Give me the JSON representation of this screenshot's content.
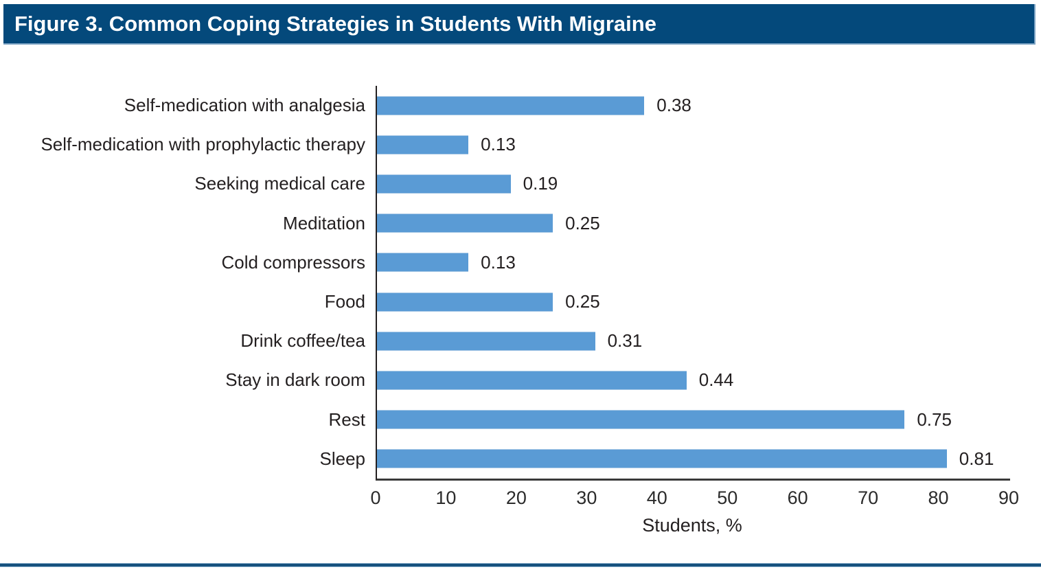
{
  "figure": {
    "title": "Figure 3. Common Coping Strategies in Students With Migraine",
    "title_bar_color": "#04497b",
    "title_text_color": "#ffffff"
  },
  "chart_data": {
    "type": "bar",
    "orientation": "horizontal",
    "title": "Figure 3. Common Coping Strategies in Students With Migraine",
    "categories": [
      "Self-medication with analgesia",
      "Self-medication with prophylactic therapy",
      "Seeking medical care",
      "Meditation",
      "Cold compressors",
      "Food",
      "Drink coffee/tea",
      "Stay in dark room",
      "Rest",
      "Sleep"
    ],
    "values": [
      0.38,
      0.13,
      0.19,
      0.25,
      0.13,
      0.25,
      0.31,
      0.44,
      0.75,
      0.81
    ],
    "value_labels": [
      "0.38",
      "0.13",
      "0.19",
      "0.25",
      "0.13",
      "0.25",
      "0.31",
      "0.44",
      "0.75",
      "0.81"
    ],
    "bar_lengths_as_percent_of_axis": [
      38,
      13,
      19,
      25,
      13,
      25,
      31,
      44,
      75,
      81
    ],
    "xlabel": "Students, %",
    "ylabel": "",
    "x_ticks": [
      "0",
      "10",
      "20",
      "30",
      "40",
      "50",
      "60",
      "70",
      "80",
      "90"
    ],
    "xlim": [
      0,
      90
    ],
    "grid": false,
    "legend": false,
    "bar_color": "#5a9bd5",
    "axis_color": "#231f20",
    "bottom_rule_color": "#15517e"
  }
}
